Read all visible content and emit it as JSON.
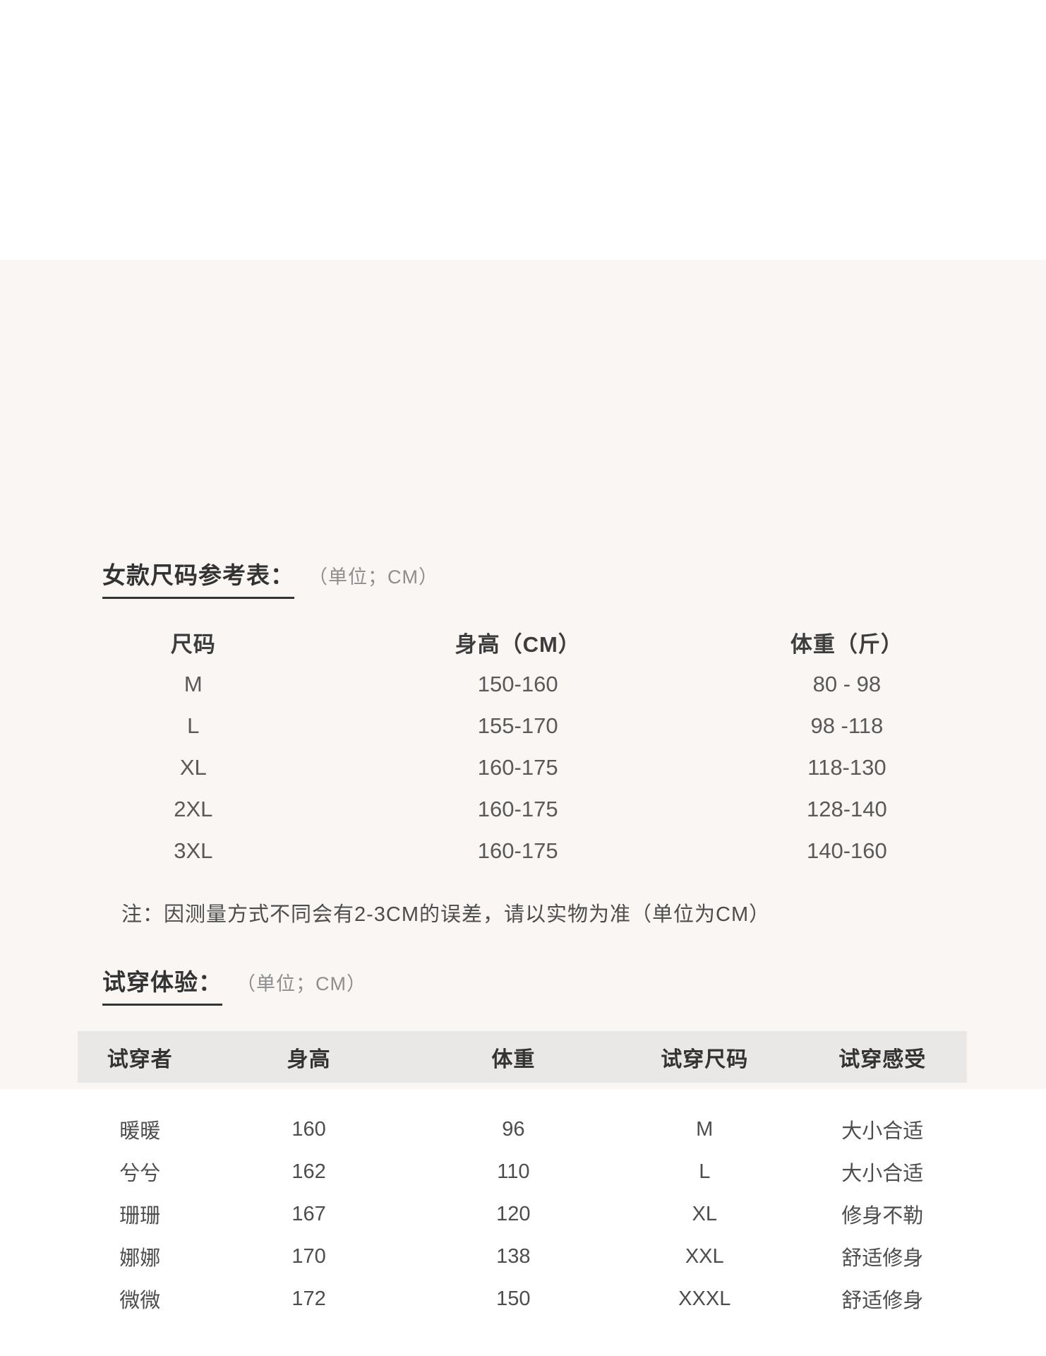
{
  "size_section": {
    "title": "女款尺码参考表：",
    "unit": "（单位；CM）",
    "table": {
      "headers": [
        "尺码",
        "身高（CM）",
        "体重（斤）"
      ],
      "rows": [
        {
          "size": "M",
          "height": "150-160",
          "weight": "80 - 98"
        },
        {
          "size": "L",
          "height": "155-170",
          "weight": "98 -118"
        },
        {
          "size": "XL",
          "height": "160-175",
          "weight": "118-130"
        },
        {
          "size": "2XL",
          "height": "160-175",
          "weight": "128-140"
        },
        {
          "size": "3XL",
          "height": "160-175",
          "weight": "140-160"
        }
      ]
    },
    "note": "注：因测量方式不同会有2-3CM的误差，请以实物为准（单位为CM）"
  },
  "fit_section": {
    "title": "试穿体验：",
    "unit": "（单位；CM）",
    "table": {
      "headers": [
        "试穿者",
        "身高",
        "体重",
        "试穿尺码",
        "试穿感受"
      ],
      "rows": [
        {
          "name": "暖暖",
          "height": "160",
          "weight": "96",
          "size": "M",
          "feel": "大小合适"
        },
        {
          "name": "兮兮",
          "height": "162",
          "weight": "110",
          "size": "L",
          "feel": "大小合适"
        },
        {
          "name": "珊珊",
          "height": "167",
          "weight": "120",
          "size": "XL",
          "feel": "修身不勒"
        },
        {
          "name": "娜娜",
          "height": "170",
          "weight": "138",
          "size": "XXL",
          "feel": "舒适修身"
        },
        {
          "name": "微微",
          "height": "172",
          "weight": "150",
          "size": "XXXL",
          "feel": "舒适修身"
        }
      ]
    }
  },
  "colors": {
    "content_bg": "#f9f6f4",
    "header_band": "#e9e8e7",
    "title_text": "#333333",
    "data_text": "#595959"
  }
}
